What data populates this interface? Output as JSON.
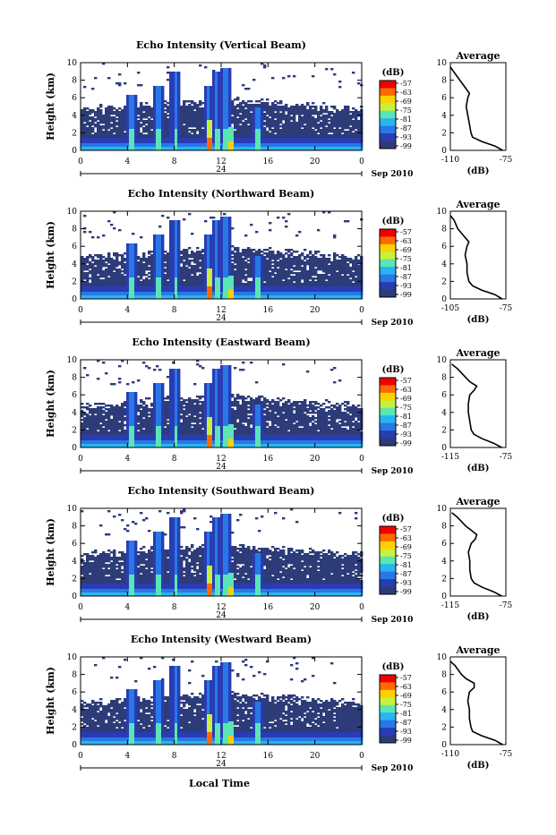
{
  "figure": {
    "date_label": "Sep 2010",
    "xlabel": "Local Time",
    "day_label": "24",
    "colorbar_unit": "(dB)",
    "colorbar_ticks": [
      "-57",
      "-63",
      "-69",
      "-75",
      "-81",
      "-87",
      "-93",
      "-99"
    ],
    "colorbar_colors": [
      "#f00000",
      "#ff6a00",
      "#ffd000",
      "#c8f03c",
      "#5ae6b4",
      "#28b4f0",
      "#2878e6",
      "#283cb4",
      "#2d3c78"
    ],
    "avg_title": "Average",
    "avg_xlabel": "(dB)"
  },
  "chart_data": [
    {
      "type": "heatmap",
      "title": "Echo Intensity (Vertical Beam)",
      "ylabel": "Height (km)",
      "x_ticks": [
        "0",
        "4",
        "8",
        "12",
        "16",
        "20",
        "0"
      ],
      "y_ticks": [
        "0",
        "2",
        "4",
        "6",
        "8",
        "10"
      ],
      "xlim": [
        0,
        24
      ],
      "ylim": [
        0,
        10
      ],
      "avg_profile": {
        "xlim": [
          -110,
          -75
        ],
        "x_tick_labels": [
          "-110",
          "-75"
        ],
        "heights": [
          0,
          0.5,
          1,
          1.5,
          2,
          3,
          4,
          5,
          6,
          6.5,
          7,
          7.5,
          8,
          9,
          9.5
        ],
        "values": [
          -77,
          -82,
          -90,
          -96,
          -97,
          -98,
          -99,
          -100,
          -99,
          -98,
          -100,
          -102,
          -104,
          -108,
          -110
        ]
      }
    },
    {
      "type": "heatmap",
      "title": "Echo Intensity (Northward Beam)",
      "ylabel": "Height (km)",
      "x_ticks": [
        "0",
        "4",
        "8",
        "12",
        "16",
        "20",
        "0"
      ],
      "y_ticks": [
        "0",
        "2",
        "4",
        "6",
        "8",
        "10"
      ],
      "xlim": [
        0,
        24
      ],
      "ylim": [
        0,
        10
      ],
      "avg_profile": {
        "xlim": [
          -105,
          -75
        ],
        "x_tick_labels": [
          "-105",
          "-75"
        ],
        "heights": [
          0,
          0.5,
          1,
          1.5,
          2,
          3,
          4,
          5,
          6,
          6.5,
          7,
          7.5,
          8,
          9,
          9.5
        ],
        "values": [
          -77,
          -81,
          -88,
          -93,
          -95,
          -96,
          -96,
          -97,
          -96,
          -95,
          -97,
          -99,
          -101,
          -103,
          -105
        ]
      }
    },
    {
      "type": "heatmap",
      "title": "Echo Intensity (Eastward Beam)",
      "ylabel": "Height (km)",
      "x_ticks": [
        "0",
        "4",
        "8",
        "12",
        "16",
        "20",
        "0"
      ],
      "y_ticks": [
        "0",
        "2",
        "4",
        "6",
        "8",
        "10"
      ],
      "xlim": [
        0,
        24
      ],
      "ylim": [
        0,
        10
      ],
      "avg_profile": {
        "xlim": [
          -115,
          -75
        ],
        "x_tick_labels": [
          "-115",
          "-75"
        ],
        "heights": [
          0,
          0.5,
          1,
          1.5,
          2,
          3,
          4,
          5,
          6,
          6.5,
          7,
          7.5,
          8,
          9,
          9.5
        ],
        "values": [
          -78,
          -84,
          -92,
          -98,
          -100,
          -101,
          -102,
          -102,
          -101,
          -98,
          -96,
          -101,
          -104,
          -110,
          -114
        ]
      }
    },
    {
      "type": "heatmap",
      "title": "Echo Intensity (Southward Beam)",
      "ylabel": "Height (km)",
      "x_ticks": [
        "0",
        "4",
        "8",
        "12",
        "16",
        "20",
        "0"
      ],
      "y_ticks": [
        "0",
        "2",
        "4",
        "6",
        "8",
        "10"
      ],
      "xlim": [
        0,
        24
      ],
      "ylim": [
        0,
        10
      ],
      "avg_profile": {
        "xlim": [
          -115,
          -75
        ],
        "x_tick_labels": [
          "-115",
          "-75"
        ],
        "heights": [
          0,
          0.5,
          1,
          1.5,
          2,
          3,
          4,
          5,
          6,
          6.5,
          7,
          7.5,
          8,
          9,
          9.5
        ],
        "values": [
          -78,
          -84,
          -92,
          -98,
          -100,
          -101,
          -101,
          -102,
          -100,
          -97,
          -96,
          -100,
          -104,
          -110,
          -114
        ]
      }
    },
    {
      "type": "heatmap",
      "title": "Echo Intensity (Westward Beam)",
      "ylabel": "Height (km)",
      "x_ticks": [
        "0",
        "4",
        "8",
        "12",
        "16",
        "20",
        "0"
      ],
      "y_ticks": [
        "0",
        "2",
        "4",
        "6",
        "8",
        "10"
      ],
      "xlim": [
        0,
        24
      ],
      "ylim": [
        0,
        10
      ],
      "avg_profile": {
        "xlim": [
          -110,
          -75
        ],
        "x_tick_labels": [
          "-110",
          "-75"
        ],
        "heights": [
          0,
          0.5,
          1,
          1.5,
          2,
          3,
          4,
          5,
          6,
          6.5,
          7,
          7.5,
          8,
          9,
          9.5
        ],
        "values": [
          -77,
          -82,
          -90,
          -96,
          -97,
          -98,
          -98,
          -99,
          -98,
          -95,
          -95,
          -100,
          -103,
          -107,
          -110
        ]
      }
    }
  ]
}
